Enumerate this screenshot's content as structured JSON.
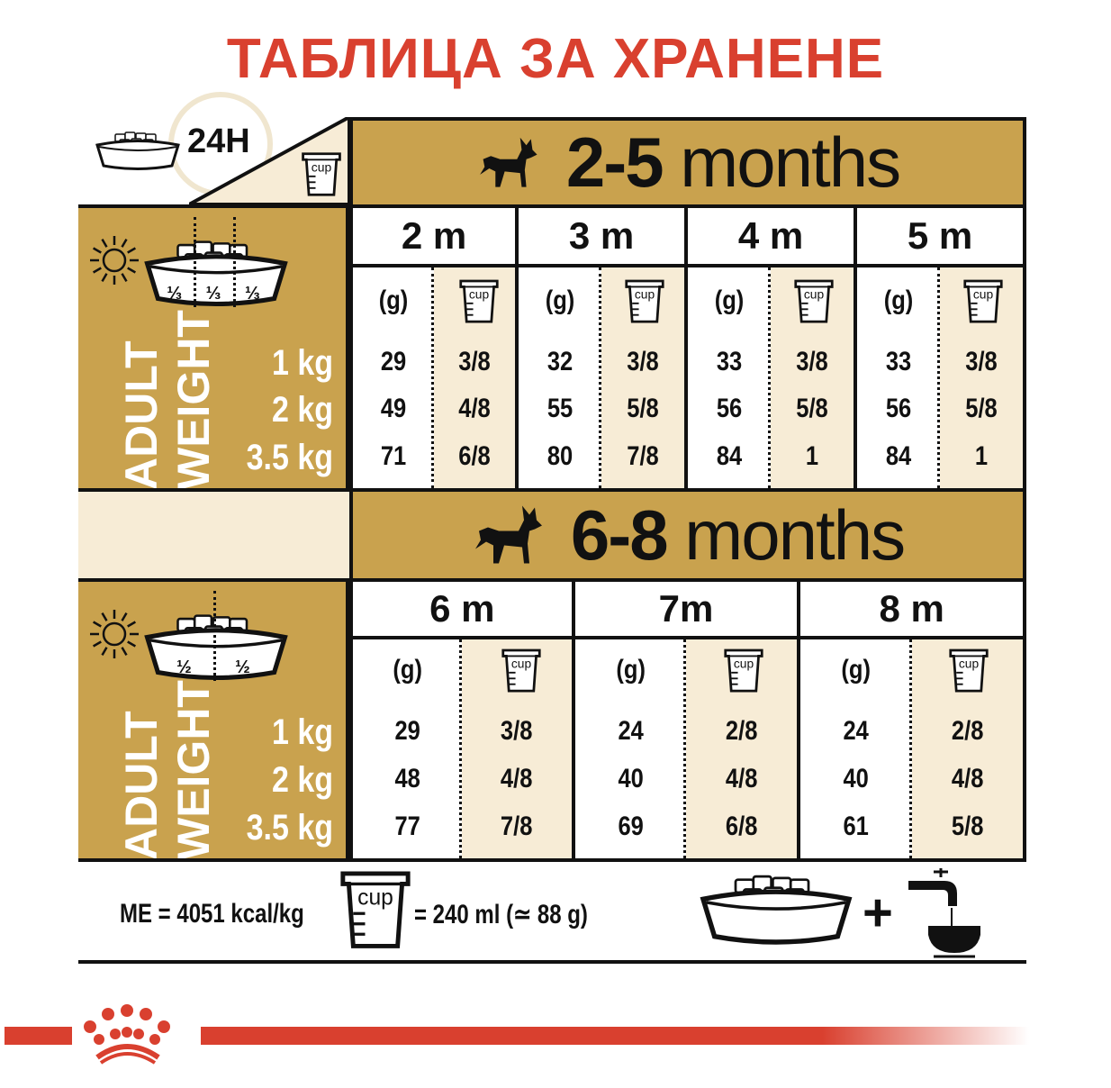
{
  "title": "ТАБЛИЦА ЗА ХРАНЕНЕ",
  "daily_label": "24H",
  "cup_label": "cup",
  "colors": {
    "gold": "#c9a24e",
    "cream": "#f7ecd6",
    "red": "#d9402f",
    "black": "#111111"
  },
  "adult_weight": {
    "line1": "ADULT",
    "line2": "WEIGHT",
    "weights": [
      "1 kg",
      "2 kg",
      "3.5 kg"
    ]
  },
  "sections": [
    {
      "age_range": "2-5",
      "age_unit": "months",
      "portions": [
        "⅓",
        "⅓",
        "⅓"
      ],
      "grams_header": "(g)",
      "months": [
        {
          "label": "2 m",
          "grams": [
            "29",
            "49",
            "71"
          ],
          "cups": [
            "3/8",
            "4/8",
            "6/8"
          ]
        },
        {
          "label": "3 m",
          "grams": [
            "32",
            "55",
            "80"
          ],
          "cups": [
            "3/8",
            "5/8",
            "7/8"
          ]
        },
        {
          "label": "4 m",
          "grams": [
            "33",
            "56",
            "84"
          ],
          "cups": [
            "3/8",
            "5/8",
            "1"
          ]
        },
        {
          "label": "5 m",
          "grams": [
            "33",
            "56",
            "84"
          ],
          "cups": [
            "3/8",
            "5/8",
            "1"
          ]
        }
      ]
    },
    {
      "age_range": "6-8",
      "age_unit": "months",
      "portions": [
        "½",
        "½"
      ],
      "grams_header": "(g)",
      "months": [
        {
          "label": "6 m",
          "grams": [
            "29",
            "48",
            "77"
          ],
          "cups": [
            "3/8",
            "4/8",
            "7/8"
          ]
        },
        {
          "label": "7m",
          "grams": [
            "24",
            "40",
            "69"
          ],
          "cups": [
            "2/8",
            "4/8",
            "6/8"
          ]
        },
        {
          "label": "8 m",
          "grams": [
            "24",
            "40",
            "61"
          ],
          "cups": [
            "2/8",
            "4/8",
            "5/8"
          ]
        }
      ]
    }
  ],
  "footer": {
    "energy": "ME = 4051 kcal/kg",
    "cup_equivalent": "= 240 ml (≃ 88 g)",
    "plus": "+"
  },
  "icons": [
    "bowl-icon",
    "clock-icon",
    "cup-icon",
    "sun-icon",
    "moon-icon",
    "dog-icon",
    "water-tap-icon",
    "royal-canin-crown-logo"
  ]
}
